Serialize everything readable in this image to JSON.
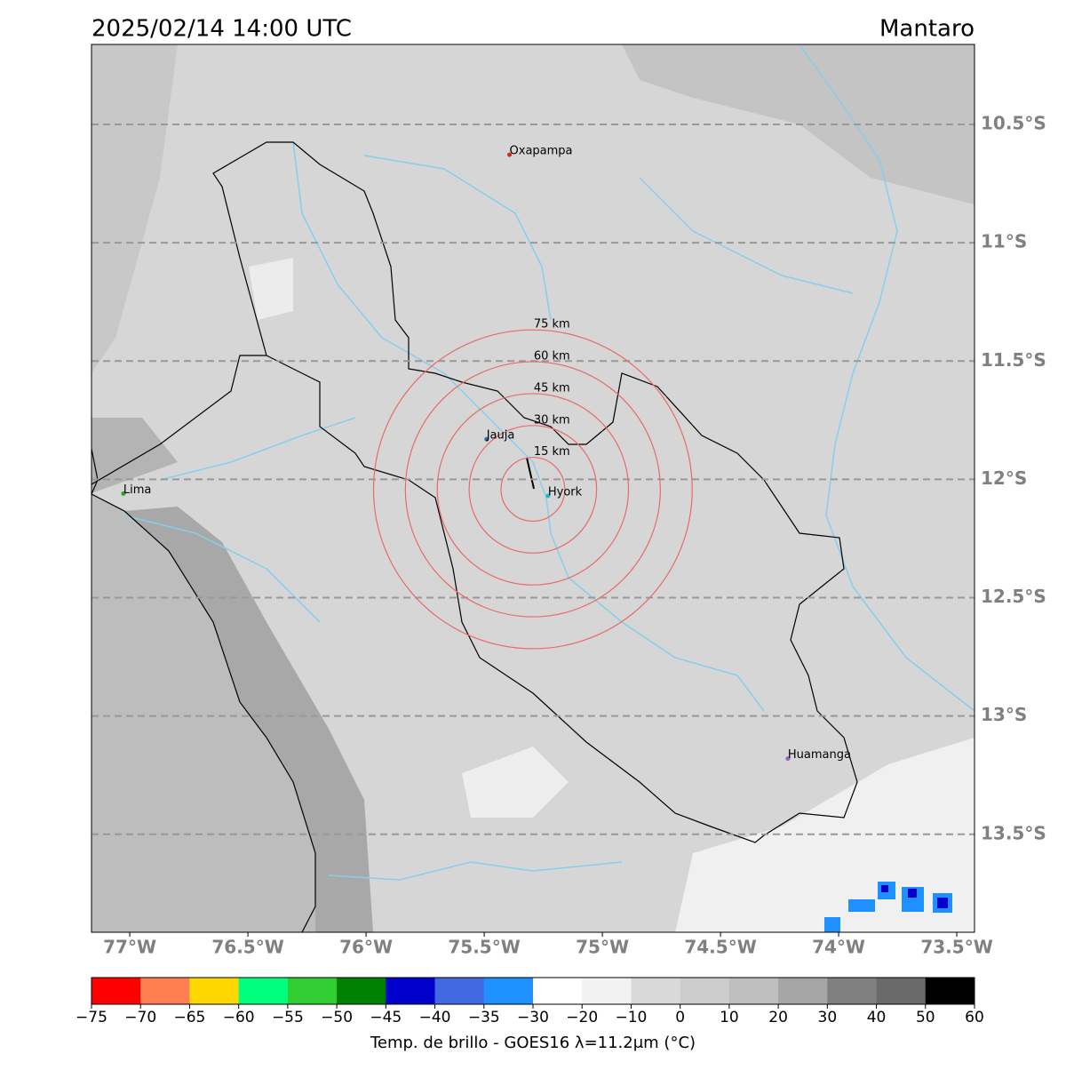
{
  "header": {
    "title": "2025/02/14 14:00 UTC",
    "region": "Mantaro"
  },
  "map": {
    "xlim": [
      -77.162,
      -73.425
    ],
    "ylim": [
      -13.914,
      -10.162
    ],
    "xticks": [
      {
        "value": -77,
        "label": "77°W"
      },
      {
        "value": -76.5,
        "label": "76.5°W"
      },
      {
        "value": -76,
        "label": "76°W"
      },
      {
        "value": -75.5,
        "label": "75.5°W"
      },
      {
        "value": -75,
        "label": "75°W"
      },
      {
        "value": -74.5,
        "label": "74.5°W"
      },
      {
        "value": -74,
        "label": "74°W"
      },
      {
        "value": -73.5,
        "label": "73.5°W"
      }
    ],
    "yticks": [
      {
        "value": -10.5,
        "label": "10.5°S"
      },
      {
        "value": -11,
        "label": "11°S"
      },
      {
        "value": -11.5,
        "label": "11.5°S"
      },
      {
        "value": -12,
        "label": "12°S"
      },
      {
        "value": -12.5,
        "label": "12.5°S"
      },
      {
        "value": -13,
        "label": "13°S"
      },
      {
        "value": -13.5,
        "label": "13.5°S"
      }
    ],
    "grid": true,
    "ring_center": [
      -75.294,
      -12.042
    ],
    "rings": [
      {
        "value": 15,
        "label": "15 km"
      },
      {
        "value": 30,
        "label": "30 km"
      },
      {
        "value": 45,
        "label": "45 km"
      },
      {
        "value": 60,
        "label": "60 km"
      },
      {
        "value": 75,
        "label": "75 km"
      }
    ],
    "ring_color": "#e86a6a",
    "cities": [
      {
        "name": "Oxapampa",
        "lon": -75.393,
        "lat": -10.628,
        "color": "#d62728"
      },
      {
        "name": "Jauja",
        "lon": -75.49,
        "lat": -11.83,
        "color": "#1f77b4"
      },
      {
        "name": "Lima",
        "lon": -77.027,
        "lat": -12.06,
        "color": "#2ca02c"
      },
      {
        "name": "Hyork",
        "lon": -75.23,
        "lat": -12.07,
        "color": "#17becf"
      },
      {
        "name": "Huamanga",
        "lon": -74.215,
        "lat": -13.18,
        "color": "#9467bd"
      }
    ]
  },
  "colorbar": {
    "boundaries": [
      {
        "value": -75,
        "label": "−75"
      },
      {
        "value": -70,
        "label": "−70"
      },
      {
        "value": -65,
        "label": "−65"
      },
      {
        "value": -60,
        "label": "−60"
      },
      {
        "value": -55,
        "label": "−55"
      },
      {
        "value": -50,
        "label": "−50"
      },
      {
        "value": -45,
        "label": "−45"
      },
      {
        "value": -40,
        "label": "−40"
      },
      {
        "value": -35,
        "label": "−35"
      },
      {
        "value": -30,
        "label": "−30"
      },
      {
        "value": -20,
        "label": "−20"
      },
      {
        "value": -10,
        "label": "−10"
      },
      0,
      10,
      20,
      30,
      40,
      50,
      60
    ],
    "colors": [
      "#ff0000",
      "#ff7f50",
      "#ffd700",
      "#00ff7f",
      "#32cd32",
      "#008000",
      "#0000cd",
      "#4169e1",
      "#1e90ff",
      "#ffffff",
      "#f2f2f2",
      "#d9d9d9",
      "#cccccc",
      "#bfbfbf",
      "#a6a6a6",
      "#808080",
      "#696969",
      "#000000"
    ],
    "label": "Temp. de brillo - GOES16 λ=11.2μm (°C)"
  }
}
